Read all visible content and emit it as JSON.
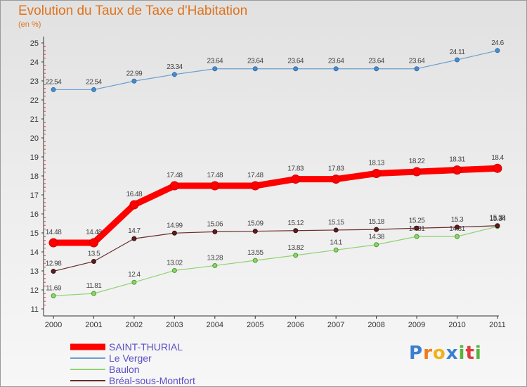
{
  "header": {
    "title": "Evolution du Taux de Taxe d'Habitation",
    "subtitle": "(en %)"
  },
  "chart_data": {
    "type": "line",
    "title": "Evolution du Taux de Taxe d'Habitation",
    "ylabel": "(en %)",
    "xlabel": "",
    "x": [
      "2000",
      "2001",
      "2002",
      "2003",
      "2004",
      "2005",
      "2006",
      "2007",
      "2008",
      "2009",
      "2010",
      "2011"
    ],
    "ylim": [
      11,
      25
    ],
    "yticks": [
      11,
      12,
      13,
      14,
      15,
      16,
      17,
      18,
      19,
      20,
      21,
      22,
      23,
      24,
      25
    ],
    "grid": false,
    "legend_position": "bottom-left",
    "series": [
      {
        "name": "SAINT-THURIAL",
        "color": "#ff0000",
        "values": [
          14.48,
          14.48,
          16.48,
          17.48,
          17.48,
          17.48,
          17.83,
          17.83,
          18.13,
          18.22,
          18.31,
          18.4
        ],
        "labels": [
          "14.48",
          "14.48",
          "16.48",
          "17.48",
          "17.48",
          "17.48",
          "17.83",
          "17.83",
          "18.13",
          "18.22",
          "18.31",
          "18.4"
        ]
      },
      {
        "name": "Le Verger",
        "color": "#6a9fd0",
        "values": [
          22.54,
          22.54,
          22.99,
          23.34,
          23.64,
          23.64,
          23.64,
          23.64,
          23.64,
          23.64,
          24.11,
          24.6
        ],
        "labels": [
          "22.54",
          "22.54",
          "22.99",
          "23.34",
          "23.64",
          "23.64",
          "23.64",
          "23.64",
          "23.64",
          "23.64",
          "24.11",
          "24.6"
        ]
      },
      {
        "name": "Baulon",
        "color": "#8fd36f",
        "values": [
          11.69,
          11.81,
          12.4,
          13.02,
          13.28,
          13.55,
          13.82,
          14.1,
          14.38,
          14.81,
          14.81,
          15.34
        ],
        "labels": [
          "11.69",
          "11.81",
          "12.4",
          "13.02",
          "13.28",
          "13.55",
          "13.82",
          "14.1",
          "14.38",
          "14.81",
          "14.81",
          "15.34"
        ]
      },
      {
        "name": "Bréal-sous-Montfort",
        "color": "#6b2c2c",
        "values": [
          12.98,
          13.5,
          14.7,
          14.99,
          15.06,
          15.09,
          15.12,
          15.15,
          15.18,
          15.25,
          15.3,
          15.38
        ],
        "labels": [
          "12.98",
          "13.5",
          "14.7",
          "14.99",
          "15.06",
          "15.09",
          "15.12",
          "15.15",
          "15.18",
          "15.25",
          "15.3",
          "15.38"
        ]
      }
    ]
  },
  "logo": {
    "letters": [
      "P",
      "r",
      "o",
      "x",
      "i",
      "t",
      "i"
    ],
    "colors": [
      "#3a7fd0",
      "#f07a1c",
      "#f0b21c",
      "#3a7fd0",
      "#56b43c",
      "#e03c3c",
      "#56b43c"
    ]
  }
}
